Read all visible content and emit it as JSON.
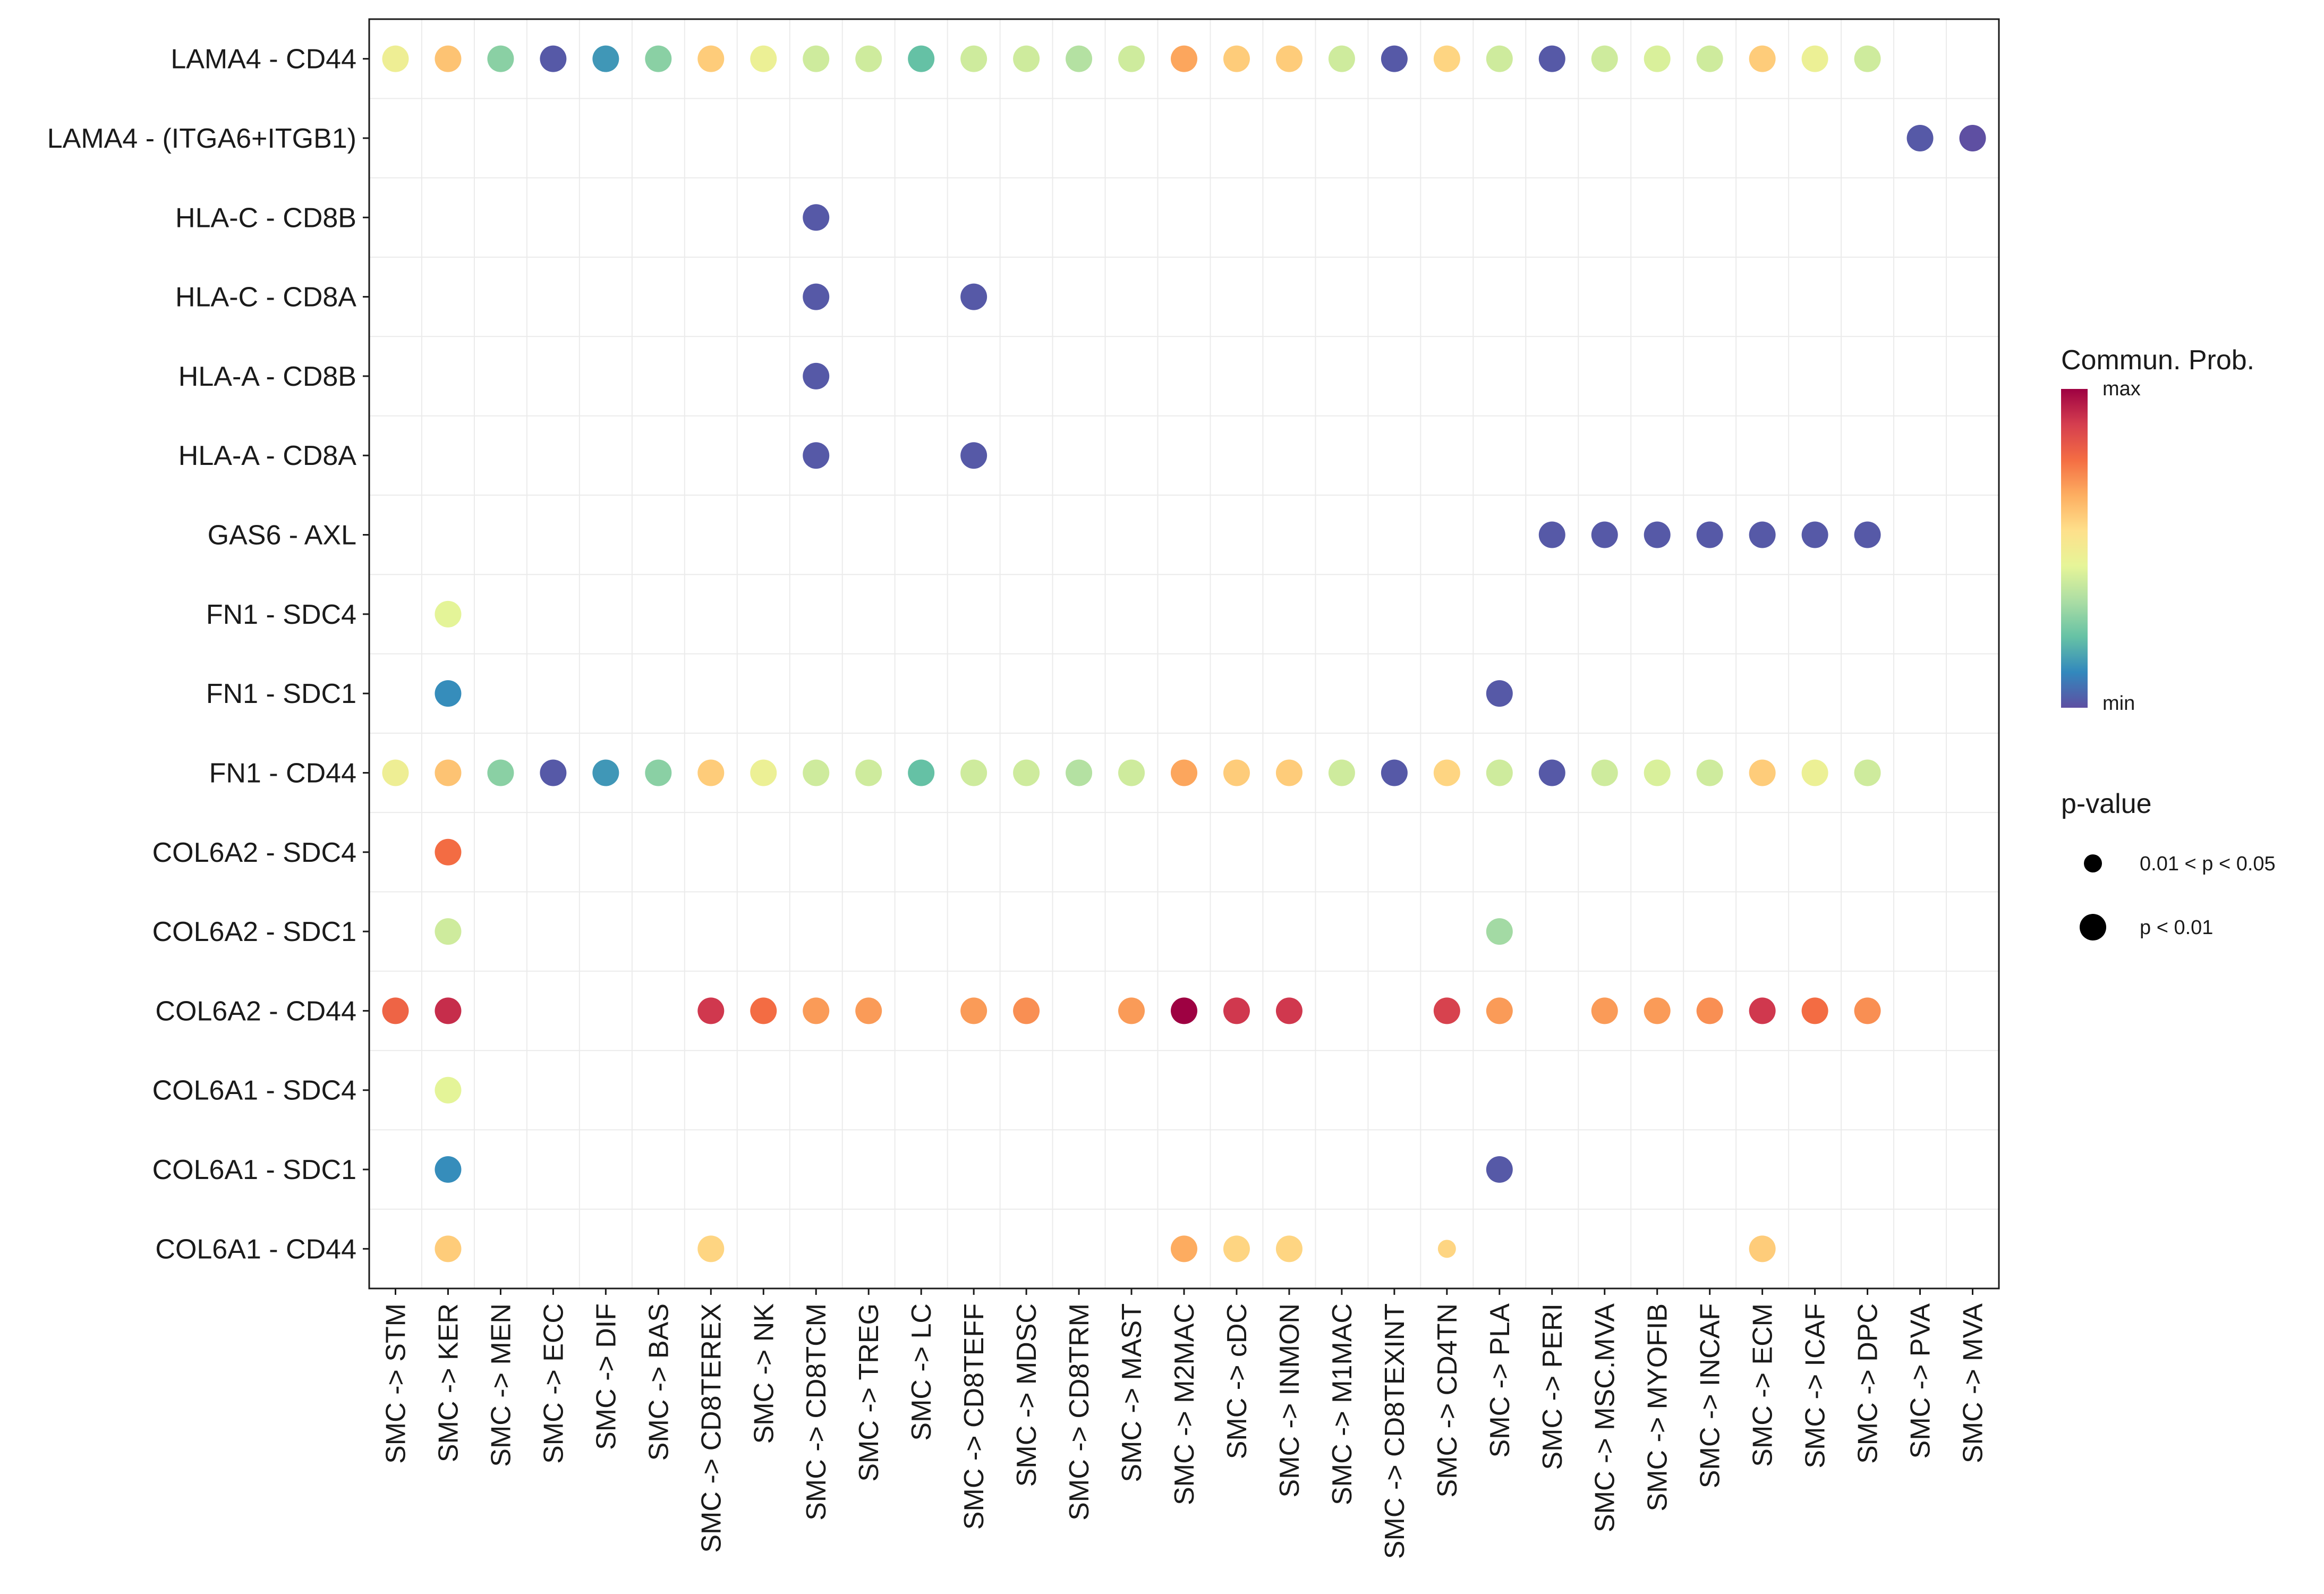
{
  "chart_data": {
    "type": "scatter",
    "subtype": "dot-matrix",
    "title": "",
    "xlabel": "",
    "ylabel": "",
    "x_categories": [
      "SMC -> STM",
      "SMC -> KER",
      "SMC -> MEN",
      "SMC -> ECC",
      "SMC -> DIF",
      "SMC -> BAS",
      "SMC -> CD8TEREX",
      "SMC -> NK",
      "SMC -> CD8TCM",
      "SMC -> TREG",
      "SMC -> LC",
      "SMC -> CD8TEFF",
      "SMC -> MDSC",
      "SMC -> CD8TRM",
      "SMC -> MAST",
      "SMC -> M2MAC",
      "SMC -> cDC",
      "SMC -> INMON",
      "SMC -> M1MAC",
      "SMC -> CD8TEXINT",
      "SMC -> CD4TN",
      "SMC -> PLA",
      "SMC -> PERI",
      "SMC -> MSC.MVA",
      "SMC -> MYOFIB",
      "SMC -> INCAF",
      "SMC -> ECM",
      "SMC -> ICAF",
      "SMC -> DPC",
      "SMC -> PVA",
      "SMC -> MVA"
    ],
    "y_categories": [
      "LAMA4 - CD44",
      "LAMA4 - (ITGA6+ITGB1)",
      "HLA-C - CD8B",
      "HLA-C - CD8A",
      "HLA-A - CD8B",
      "HLA-A - CD8A",
      "GAS6 - AXL",
      "FN1 - SDC4",
      "FN1 - SDC1",
      "FN1 - CD44",
      "COL6A2 - SDC4",
      "COL6A2 - SDC1",
      "COL6A2 - CD44",
      "COL6A1 - SDC4",
      "COL6A1 - SDC1",
      "COL6A1 - CD44"
    ],
    "value_scale": "relative 0 (min) to 1 (max)",
    "points": [
      {
        "y": "LAMA4 - CD44",
        "x": "SMC -> STM",
        "prob": 0.48,
        "pval": "p < 0.01"
      },
      {
        "y": "LAMA4 - CD44",
        "x": "SMC -> KER",
        "prob": 0.62,
        "pval": "p < 0.01"
      },
      {
        "y": "LAMA4 - CD44",
        "x": "SMC -> MEN",
        "prob": 0.28,
        "pval": "p < 0.01"
      },
      {
        "y": "LAMA4 - CD44",
        "x": "SMC -> ECC",
        "prob": 0.02,
        "pval": "p < 0.01"
      },
      {
        "y": "LAMA4 - CD44",
        "x": "SMC -> DIF",
        "prob": 0.14,
        "pval": "p < 0.01"
      },
      {
        "y": "LAMA4 - CD44",
        "x": "SMC -> BAS",
        "prob": 0.28,
        "pval": "p < 0.01"
      },
      {
        "y": "LAMA4 - CD44",
        "x": "SMC -> CD8TEREX",
        "prob": 0.6,
        "pval": "p < 0.01"
      },
      {
        "y": "LAMA4 - CD44",
        "x": "SMC -> NK",
        "prob": 0.47,
        "pval": "p < 0.01"
      },
      {
        "y": "LAMA4 - CD44",
        "x": "SMC -> CD8TCM",
        "prob": 0.4,
        "pval": "p < 0.01"
      },
      {
        "y": "LAMA4 - CD44",
        "x": "SMC -> TREG",
        "prob": 0.4,
        "pval": "p < 0.01"
      },
      {
        "y": "LAMA4 - CD44",
        "x": "SMC -> LC",
        "prob": 0.22,
        "pval": "p < 0.01"
      },
      {
        "y": "LAMA4 - CD44",
        "x": "SMC -> CD8TEFF",
        "prob": 0.4,
        "pval": "p < 0.01"
      },
      {
        "y": "LAMA4 - CD44",
        "x": "SMC -> MDSC",
        "prob": 0.4,
        "pval": "p < 0.01"
      },
      {
        "y": "LAMA4 - CD44",
        "x": "SMC -> CD8TRM",
        "prob": 0.35,
        "pval": "p < 0.01"
      },
      {
        "y": "LAMA4 - CD44",
        "x": "SMC -> MAST",
        "prob": 0.4,
        "pval": "p < 0.01"
      },
      {
        "y": "LAMA4 - CD44",
        "x": "SMC -> M2MAC",
        "prob": 0.68,
        "pval": "p < 0.01"
      },
      {
        "y": "LAMA4 - CD44",
        "x": "SMC -> cDC",
        "prob": 0.6,
        "pval": "p < 0.01"
      },
      {
        "y": "LAMA4 - CD44",
        "x": "SMC -> INMON",
        "prob": 0.6,
        "pval": "p < 0.01"
      },
      {
        "y": "LAMA4 - CD44",
        "x": "SMC -> M1MAC",
        "prob": 0.4,
        "pval": "p < 0.01"
      },
      {
        "y": "LAMA4 - CD44",
        "x": "SMC -> CD8TEXINT",
        "prob": 0.02,
        "pval": "p < 0.01"
      },
      {
        "y": "LAMA4 - CD44",
        "x": "SMC -> CD4TN",
        "prob": 0.58,
        "pval": "p < 0.01"
      },
      {
        "y": "LAMA4 - CD44",
        "x": "SMC -> PLA",
        "prob": 0.4,
        "pval": "p < 0.01"
      },
      {
        "y": "LAMA4 - CD44",
        "x": "SMC -> PERI",
        "prob": 0.02,
        "pval": "p < 0.01"
      },
      {
        "y": "LAMA4 - CD44",
        "x": "SMC -> MSC.MVA",
        "prob": 0.4,
        "pval": "p < 0.01"
      },
      {
        "y": "LAMA4 - CD44",
        "x": "SMC -> MYOFIB",
        "prob": 0.42,
        "pval": "p < 0.01"
      },
      {
        "y": "LAMA4 - CD44",
        "x": "SMC -> INCAF",
        "prob": 0.4,
        "pval": "p < 0.01"
      },
      {
        "y": "LAMA4 - CD44",
        "x": "SMC -> ECM",
        "prob": 0.6,
        "pval": "p < 0.01"
      },
      {
        "y": "LAMA4 - CD44",
        "x": "SMC -> ICAF",
        "prob": 0.47,
        "pval": "p < 0.01"
      },
      {
        "y": "LAMA4 - CD44",
        "x": "SMC -> DPC",
        "prob": 0.4,
        "pval": "p < 0.01"
      },
      {
        "y": "LAMA4 - (ITGA6+ITGB1)",
        "x": "SMC -> PVA",
        "prob": 0.02,
        "pval": "p < 0.01"
      },
      {
        "y": "LAMA4 - (ITGA6+ITGB1)",
        "x": "SMC -> MVA",
        "prob": 0.0,
        "pval": "p < 0.01"
      },
      {
        "y": "HLA-C - CD8B",
        "x": "SMC -> CD8TCM",
        "prob": 0.02,
        "pval": "p < 0.01"
      },
      {
        "y": "HLA-C - CD8A",
        "x": "SMC -> CD8TCM",
        "prob": 0.02,
        "pval": "p < 0.01"
      },
      {
        "y": "HLA-C - CD8A",
        "x": "SMC -> CD8TEFF",
        "prob": 0.02,
        "pval": "p < 0.01"
      },
      {
        "y": "HLA-A - CD8B",
        "x": "SMC -> CD8TCM",
        "prob": 0.02,
        "pval": "p < 0.01"
      },
      {
        "y": "HLA-A - CD8A",
        "x": "SMC -> CD8TCM",
        "prob": 0.02,
        "pval": "p < 0.01"
      },
      {
        "y": "HLA-A - CD8A",
        "x": "SMC -> CD8TEFF",
        "prob": 0.02,
        "pval": "p < 0.01"
      },
      {
        "y": "GAS6 - AXL",
        "x": "SMC -> PERI",
        "prob": 0.02,
        "pval": "p < 0.01"
      },
      {
        "y": "GAS6 - AXL",
        "x": "SMC -> MSC.MVA",
        "prob": 0.02,
        "pval": "p < 0.01"
      },
      {
        "y": "GAS6 - AXL",
        "x": "SMC -> MYOFIB",
        "prob": 0.02,
        "pval": "p < 0.01"
      },
      {
        "y": "GAS6 - AXL",
        "x": "SMC -> INCAF",
        "prob": 0.02,
        "pval": "p < 0.01"
      },
      {
        "y": "GAS6 - AXL",
        "x": "SMC -> ECM",
        "prob": 0.02,
        "pval": "p < 0.01"
      },
      {
        "y": "GAS6 - AXL",
        "x": "SMC -> ICAF",
        "prob": 0.02,
        "pval": "p < 0.01"
      },
      {
        "y": "GAS6 - AXL",
        "x": "SMC -> DPC",
        "prob": 0.02,
        "pval": "p < 0.01"
      },
      {
        "y": "FN1 - SDC4",
        "x": "SMC -> KER",
        "prob": 0.44,
        "pval": "p < 0.01"
      },
      {
        "y": "FN1 - SDC1",
        "x": "SMC -> KER",
        "prob": 0.12,
        "pval": "p < 0.01"
      },
      {
        "y": "FN1 - SDC1",
        "x": "SMC -> PLA",
        "prob": 0.02,
        "pval": "p < 0.01"
      },
      {
        "y": "FN1 - CD44",
        "x": "SMC -> STM",
        "prob": 0.48,
        "pval": "p < 0.01"
      },
      {
        "y": "FN1 - CD44",
        "x": "SMC -> KER",
        "prob": 0.62,
        "pval": "p < 0.01"
      },
      {
        "y": "FN1 - CD44",
        "x": "SMC -> MEN",
        "prob": 0.28,
        "pval": "p < 0.01"
      },
      {
        "y": "FN1 - CD44",
        "x": "SMC -> ECC",
        "prob": 0.02,
        "pval": "p < 0.01"
      },
      {
        "y": "FN1 - CD44",
        "x": "SMC -> DIF",
        "prob": 0.14,
        "pval": "p < 0.01"
      },
      {
        "y": "FN1 - CD44",
        "x": "SMC -> BAS",
        "prob": 0.28,
        "pval": "p < 0.01"
      },
      {
        "y": "FN1 - CD44",
        "x": "SMC -> CD8TEREX",
        "prob": 0.6,
        "pval": "p < 0.01"
      },
      {
        "y": "FN1 - CD44",
        "x": "SMC -> NK",
        "prob": 0.47,
        "pval": "p < 0.01"
      },
      {
        "y": "FN1 - CD44",
        "x": "SMC -> CD8TCM",
        "prob": 0.4,
        "pval": "p < 0.01"
      },
      {
        "y": "FN1 - CD44",
        "x": "SMC -> TREG",
        "prob": 0.4,
        "pval": "p < 0.01"
      },
      {
        "y": "FN1 - CD44",
        "x": "SMC -> LC",
        "prob": 0.22,
        "pval": "p < 0.01"
      },
      {
        "y": "FN1 - CD44",
        "x": "SMC -> CD8TEFF",
        "prob": 0.4,
        "pval": "p < 0.01"
      },
      {
        "y": "FN1 - CD44",
        "x": "SMC -> MDSC",
        "prob": 0.4,
        "pval": "p < 0.01"
      },
      {
        "y": "FN1 - CD44",
        "x": "SMC -> CD8TRM",
        "prob": 0.35,
        "pval": "p < 0.01"
      },
      {
        "y": "FN1 - CD44",
        "x": "SMC -> MAST",
        "prob": 0.4,
        "pval": "p < 0.01"
      },
      {
        "y": "FN1 - CD44",
        "x": "SMC -> M2MAC",
        "prob": 0.68,
        "pval": "p < 0.01"
      },
      {
        "y": "FN1 - CD44",
        "x": "SMC -> cDC",
        "prob": 0.6,
        "pval": "p < 0.01"
      },
      {
        "y": "FN1 - CD44",
        "x": "SMC -> INMON",
        "prob": 0.6,
        "pval": "p < 0.01"
      },
      {
        "y": "FN1 - CD44",
        "x": "SMC -> M1MAC",
        "prob": 0.4,
        "pval": "p < 0.01"
      },
      {
        "y": "FN1 - CD44",
        "x": "SMC -> CD8TEXINT",
        "prob": 0.02,
        "pval": "p < 0.01"
      },
      {
        "y": "FN1 - CD44",
        "x": "SMC -> CD4TN",
        "prob": 0.58,
        "pval": "p < 0.01"
      },
      {
        "y": "FN1 - CD44",
        "x": "SMC -> PLA",
        "prob": 0.4,
        "pval": "p < 0.01"
      },
      {
        "y": "FN1 - CD44",
        "x": "SMC -> PERI",
        "prob": 0.02,
        "pval": "p < 0.01"
      },
      {
        "y": "FN1 - CD44",
        "x": "SMC -> MSC.MVA",
        "prob": 0.4,
        "pval": "p < 0.01"
      },
      {
        "y": "FN1 - CD44",
        "x": "SMC -> MYOFIB",
        "prob": 0.42,
        "pval": "p < 0.01"
      },
      {
        "y": "FN1 - CD44",
        "x": "SMC -> INCAF",
        "prob": 0.4,
        "pval": "p < 0.01"
      },
      {
        "y": "FN1 - CD44",
        "x": "SMC -> ECM",
        "prob": 0.6,
        "pval": "p < 0.01"
      },
      {
        "y": "FN1 - CD44",
        "x": "SMC -> ICAF",
        "prob": 0.47,
        "pval": "p < 0.01"
      },
      {
        "y": "FN1 - CD44",
        "x": "SMC -> DPC",
        "prob": 0.4,
        "pval": "p < 0.01"
      },
      {
        "y": "COL6A2 - SDC4",
        "x": "SMC -> KER",
        "prob": 0.78,
        "pval": "p < 0.01"
      },
      {
        "y": "COL6A2 - SDC1",
        "x": "SMC -> KER",
        "prob": 0.4,
        "pval": "p < 0.01"
      },
      {
        "y": "COL6A2 - SDC1",
        "x": "SMC -> PLA",
        "prob": 0.32,
        "pval": "p < 0.01"
      },
      {
        "y": "COL6A2 - CD44",
        "x": "SMC -> STM",
        "prob": 0.8,
        "pval": "p < 0.01"
      },
      {
        "y": "COL6A2 - CD44",
        "x": "SMC -> KER",
        "prob": 0.92,
        "pval": "p < 0.01"
      },
      {
        "y": "COL6A2 - CD44",
        "x": "SMC -> CD8TEREX",
        "prob": 0.9,
        "pval": "p < 0.01"
      },
      {
        "y": "COL6A2 - CD44",
        "x": "SMC -> NK",
        "prob": 0.78,
        "pval": "p < 0.01"
      },
      {
        "y": "COL6A2 - CD44",
        "x": "SMC -> CD8TCM",
        "prob": 0.7,
        "pval": "p < 0.01"
      },
      {
        "y": "COL6A2 - CD44",
        "x": "SMC -> TREG",
        "prob": 0.7,
        "pval": "p < 0.01"
      },
      {
        "y": "COL6A2 - CD44",
        "x": "SMC -> CD8TEFF",
        "prob": 0.7,
        "pval": "p < 0.01"
      },
      {
        "y": "COL6A2 - CD44",
        "x": "SMC -> MDSC",
        "prob": 0.72,
        "pval": "p < 0.01"
      },
      {
        "y": "COL6A2 - CD44",
        "x": "SMC -> MAST",
        "prob": 0.7,
        "pval": "p < 0.01"
      },
      {
        "y": "COL6A2 - CD44",
        "x": "SMC -> M2MAC",
        "prob": 1.0,
        "pval": "p < 0.01"
      },
      {
        "y": "COL6A2 - CD44",
        "x": "SMC -> cDC",
        "prob": 0.9,
        "pval": "p < 0.01"
      },
      {
        "y": "COL6A2 - CD44",
        "x": "SMC -> INMON",
        "prob": 0.9,
        "pval": "p < 0.01"
      },
      {
        "y": "COL6A2 - CD44",
        "x": "SMC -> CD4TN",
        "prob": 0.88,
        "pval": "p < 0.01"
      },
      {
        "y": "COL6A2 - CD44",
        "x": "SMC -> PLA",
        "prob": 0.7,
        "pval": "p < 0.01"
      },
      {
        "y": "COL6A2 - CD44",
        "x": "SMC -> MSC.MVA",
        "prob": 0.7,
        "pval": "p < 0.01"
      },
      {
        "y": "COL6A2 - CD44",
        "x": "SMC -> MYOFIB",
        "prob": 0.7,
        "pval": "p < 0.01"
      },
      {
        "y": "COL6A2 - CD44",
        "x": "SMC -> INCAF",
        "prob": 0.72,
        "pval": "p < 0.01"
      },
      {
        "y": "COL6A2 - CD44",
        "x": "SMC -> ECM",
        "prob": 0.9,
        "pval": "p < 0.01"
      },
      {
        "y": "COL6A2 - CD44",
        "x": "SMC -> ICAF",
        "prob": 0.78,
        "pval": "p < 0.01"
      },
      {
        "y": "COL6A2 - CD44",
        "x": "SMC -> DPC",
        "prob": 0.72,
        "pval": "p < 0.01"
      },
      {
        "y": "COL6A1 - SDC4",
        "x": "SMC -> KER",
        "prob": 0.44,
        "pval": "p < 0.01"
      },
      {
        "y": "COL6A1 - SDC1",
        "x": "SMC -> KER",
        "prob": 0.12,
        "pval": "p < 0.01"
      },
      {
        "y": "COL6A1 - SDC1",
        "x": "SMC -> PLA",
        "prob": 0.02,
        "pval": "p < 0.01"
      },
      {
        "y": "COL6A1 - CD44",
        "x": "SMC -> KER",
        "prob": 0.6,
        "pval": "p < 0.01"
      },
      {
        "y": "COL6A1 - CD44",
        "x": "SMC -> CD8TEREX",
        "prob": 0.58,
        "pval": "p < 0.01"
      },
      {
        "y": "COL6A1 - CD44",
        "x": "SMC -> M2MAC",
        "prob": 0.67,
        "pval": "p < 0.01"
      },
      {
        "y": "COL6A1 - CD44",
        "x": "SMC -> cDC",
        "prob": 0.58,
        "pval": "p < 0.01"
      },
      {
        "y": "COL6A1 - CD44",
        "x": "SMC -> INMON",
        "prob": 0.58,
        "pval": "p < 0.01"
      },
      {
        "y": "COL6A1 - CD44",
        "x": "SMC -> CD4TN",
        "prob": 0.58,
        "pval": "p < 0.05"
      },
      {
        "y": "COL6A1 - CD44",
        "x": "SMC -> ECM",
        "prob": 0.6,
        "pval": "p < 0.01"
      }
    ],
    "colorbar": {
      "title": "Commun. Prob.",
      "max_label": "max",
      "min_label": "min",
      "colors": [
        "#5e4fa2",
        "#3288bd",
        "#66c2a5",
        "#abdda4",
        "#e6f598",
        "#fee08b",
        "#fdae61",
        "#f46d43",
        "#d53e4f",
        "#9e0142"
      ]
    },
    "size_legend": {
      "title": "p-value",
      "items": [
        {
          "label": "0.01 < p < 0.05",
          "key": "p < 0.05"
        },
        {
          "label": "p < 0.01",
          "key": "p < 0.01"
        }
      ]
    },
    "grid": true,
    "legend_position": "right"
  }
}
